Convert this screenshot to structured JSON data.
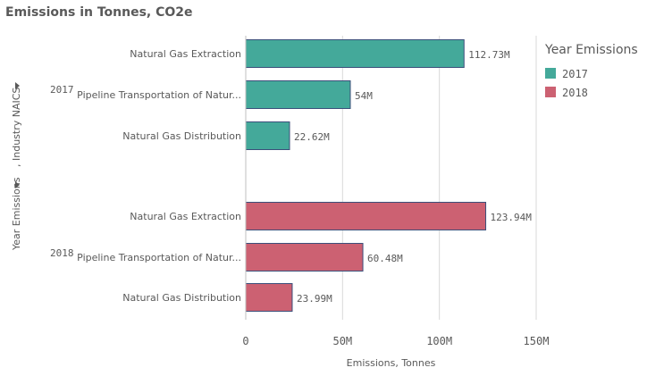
{
  "title": "Emissions in Tonnes, CO2e",
  "colors": {
    "2017": "#44a99a",
    "2018": "#cc6172",
    "bar_border": "#3b4f7a",
    "grid": "#d9d9d9",
    "text": "#595959"
  },
  "legend": {
    "title": "Year Emissions",
    "position": "right"
  },
  "axis_dims": {
    "year": "Year Emissions",
    "industry": ", Industry NAICS"
  },
  "chart_data": {
    "type": "bar",
    "orientation": "horizontal",
    "title": "Emissions in Tonnes, CO2e",
    "xlabel": "Emissions, Tonnes",
    "ylabel": "Year Emissions, Industry NAICS",
    "xlim": [
      0,
      150000000
    ],
    "xticks": [
      {
        "value": 0,
        "label": "0"
      },
      {
        "value": 50000000,
        "label": "50M"
      },
      {
        "value": 100000000,
        "label": "100M"
      },
      {
        "value": 150000000,
        "label": "150M"
      }
    ],
    "grid": true,
    "groups": [
      {
        "name": "2017",
        "bars": [
          {
            "category": "Natural Gas Extraction",
            "value": 112730000,
            "label": "112.73M"
          },
          {
            "category": "Pipeline Transportation of Natur...",
            "value": 54000000,
            "label": "54M"
          },
          {
            "category": "Natural Gas Distribution",
            "value": 22620000,
            "label": "22.62M"
          }
        ]
      },
      {
        "name": "2018",
        "bars": [
          {
            "category": "Natural Gas Extraction",
            "value": 123940000,
            "label": "123.94M"
          },
          {
            "category": "Pipeline Transportation of Natur...",
            "value": 60480000,
            "label": "60.48M"
          },
          {
            "category": "Natural Gas Distribution",
            "value": 23990000,
            "label": "23.99M"
          }
        ]
      }
    ]
  }
}
